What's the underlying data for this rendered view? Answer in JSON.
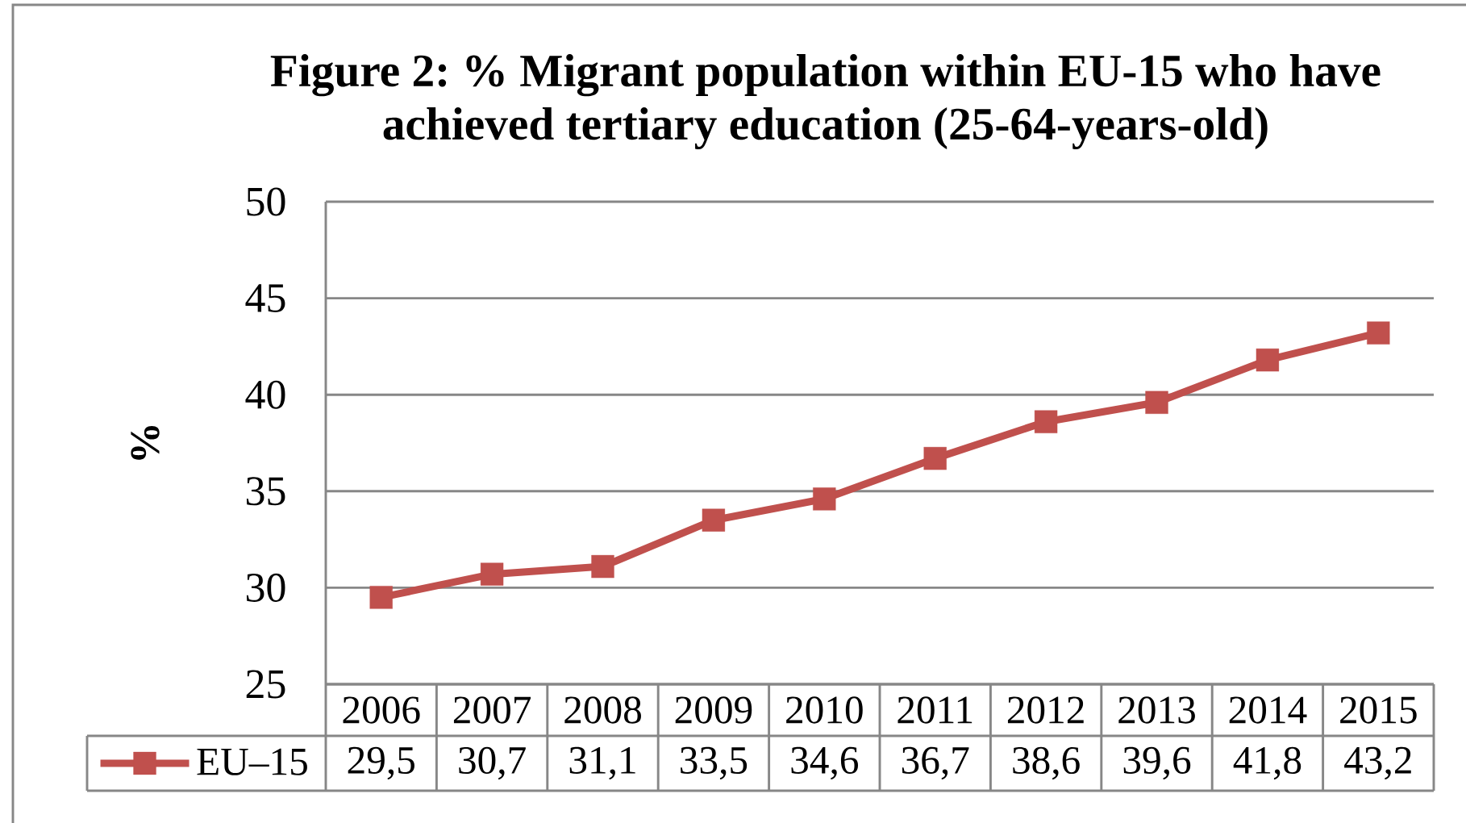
{
  "chart_data": {
    "type": "line",
    "title": "Figure 2: % Migrant population within EU-15 who have achieved tertiary education (25-64-years-old)",
    "ylabel": "%",
    "categories": [
      "2006",
      "2007",
      "2008",
      "2009",
      "2010",
      "2011",
      "2012",
      "2013",
      "2014",
      "2015"
    ],
    "series": [
      {
        "name": "EU–15",
        "color": "#c0504d",
        "values": [
          29.5,
          30.7,
          31.1,
          33.5,
          34.6,
          36.7,
          38.6,
          39.6,
          41.8,
          43.2
        ],
        "value_labels": [
          "29,5",
          "30,7",
          "31,1",
          "33,5",
          "34,6",
          "36,7",
          "38,6",
          "39,6",
          "41,8",
          "43,2"
        ]
      }
    ],
    "ylim": [
      25,
      50
    ],
    "yticks": [
      25,
      30,
      35,
      40,
      45,
      50
    ],
    "grid": "y",
    "legend": "bottom left",
    "marker": "square",
    "line_style": "solid"
  }
}
